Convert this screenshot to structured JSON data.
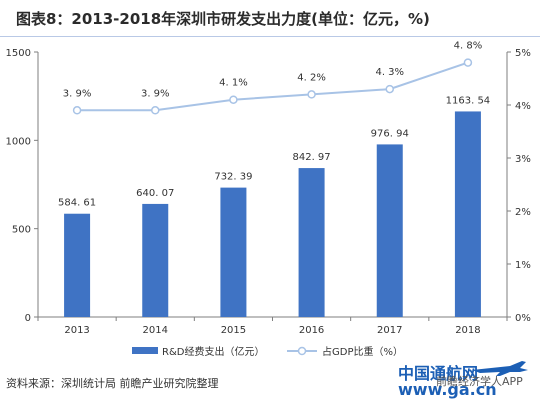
{
  "title": "图表8：2013-2018年深圳市研发支出力度(单位：亿元，%)",
  "source": "资料来源：深圳统计局 前瞻产业研究院整理",
  "watermark": {
    "logo_text": "中国通航网",
    "url_text": "www.ga.cn",
    "app_text": "前瞻经济学人APP"
  },
  "colors": {
    "bar": "#3f73c4",
    "line": "#a8c3e6",
    "axis": "#7f7f7f",
    "title_rule": "#b9c9e6"
  },
  "chart_data": {
    "type": "bar",
    "categories": [
      "2013",
      "2014",
      "2015",
      "2016",
      "2017",
      "2018"
    ],
    "series": [
      {
        "name": "R&D经费支出（亿元）",
        "type": "bar",
        "axis": "left",
        "values": [
          584.61,
          640.07,
          732.39,
          842.97,
          976.94,
          1163.54
        ],
        "labels": [
          "584. 61",
          "640. 07",
          "732. 39",
          "842. 97",
          "976. 94",
          "1163. 54"
        ]
      },
      {
        "name": "占GDP比重（%）",
        "type": "line",
        "axis": "right",
        "values": [
          3.9,
          3.9,
          4.1,
          4.2,
          4.3,
          4.8
        ],
        "labels": [
          "3. 9%",
          "3. 9%",
          "4. 1%",
          "4. 2%",
          "4. 3%",
          "4. 8%"
        ]
      }
    ],
    "y_left": {
      "min": 0,
      "max": 1500,
      "ticks": [
        "0",
        "500",
        "1000",
        "1500"
      ]
    },
    "y_right": {
      "min": 0,
      "max": 5,
      "ticks": [
        "0%",
        "1%",
        "2%",
        "3%",
        "4%",
        "5%"
      ]
    },
    "grid": false,
    "legend_position": "bottom"
  }
}
